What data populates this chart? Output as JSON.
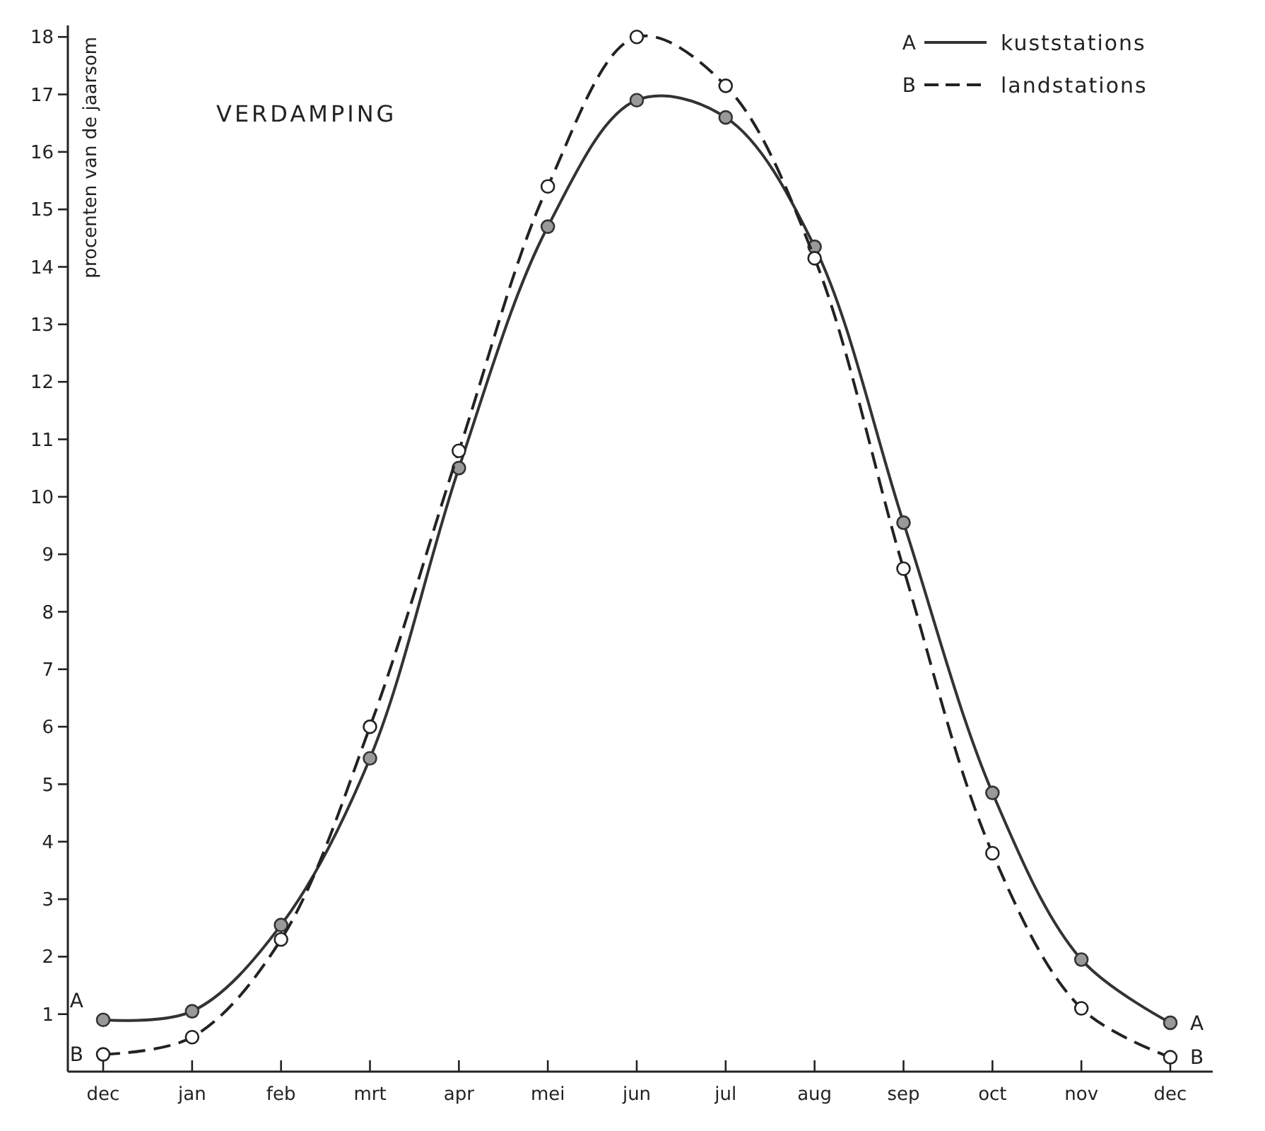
{
  "chart_data": {
    "type": "line",
    "title": "VERDAMPING",
    "ylabel": "procenten van de jaarsom",
    "categories": [
      "dec",
      "jan",
      "feb",
      "mrt",
      "apr",
      "mei",
      "jun",
      "jul",
      "aug",
      "sep",
      "oct",
      "nov",
      "dec"
    ],
    "series": [
      {
        "name": "kuststations",
        "color": "#333333",
        "line_style": "solid",
        "values": [
          0.9,
          1.05,
          2.55,
          5.45,
          10.5,
          14.7,
          16.9,
          16.6,
          14.35,
          9.55,
          4.85,
          1.95,
          0.85
        ]
      },
      {
        "name": "landstations",
        "color": "#222222",
        "line_style": "dashed",
        "values": [
          0.3,
          0.6,
          2.3,
          6.0,
          10.8,
          15.4,
          18.0,
          17.15,
          14.15,
          8.75,
          3.8,
          1.1,
          0.25
        ]
      }
    ],
    "ylim": [
      0,
      18.2
    ],
    "yticks": [
      1,
      2,
      3,
      4,
      5,
      6,
      7,
      8,
      9,
      10,
      11,
      12,
      13,
      14,
      15,
      16,
      17,
      18
    ],
    "marker": "circle",
    "legend": "top right",
    "grid": false,
    "annotations": [
      "A",
      "B",
      "A",
      "B"
    ]
  }
}
